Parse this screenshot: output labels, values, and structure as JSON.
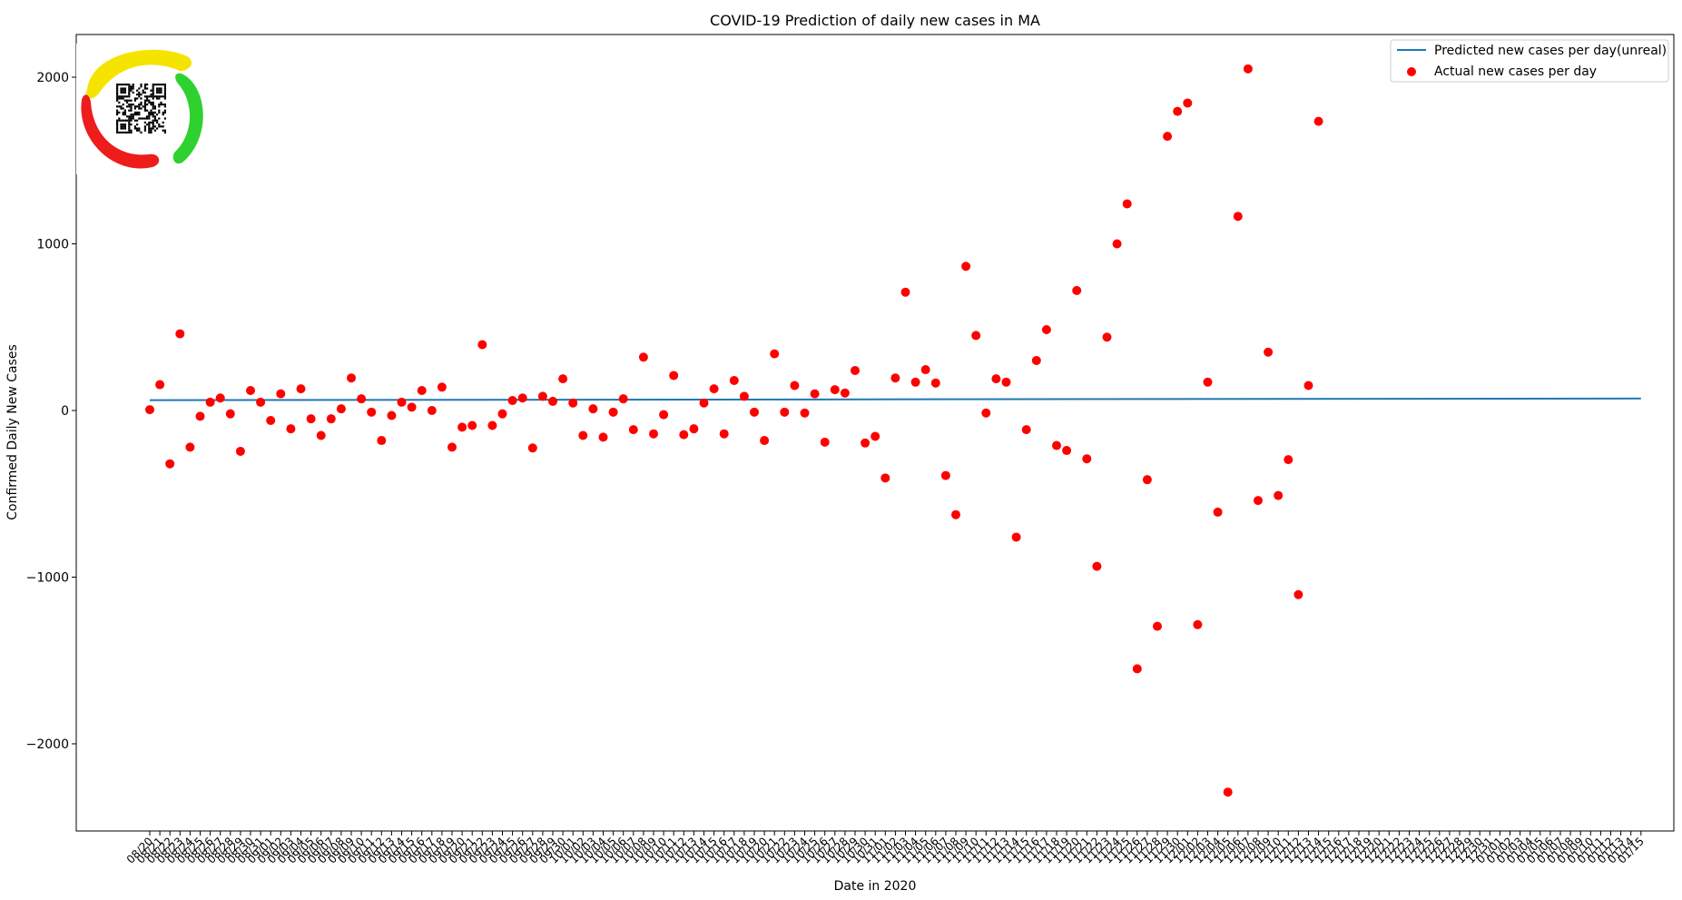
{
  "chart_data": {
    "type": "scatter",
    "title": "COVID-19 Prediction of daily new cases in MA",
    "xlabel": "Date in 2020",
    "ylabel": "Confirmed Daily New Cases",
    "ylim": [
      -2500,
      2250
    ],
    "yticks": [
      -2000,
      -1000,
      0,
      1000,
      2000
    ],
    "grid": false,
    "legend_position": "top-right",
    "categories": [
      "08/20",
      "08/21",
      "08/22",
      "08/23",
      "08/24",
      "08/25",
      "08/26",
      "08/27",
      "08/28",
      "08/29",
      "08/30",
      "08/31",
      "09/01",
      "09/02",
      "09/03",
      "09/04",
      "09/05",
      "09/06",
      "09/07",
      "09/08",
      "09/09",
      "09/10",
      "09/11",
      "09/12",
      "09/13",
      "09/14",
      "09/15",
      "09/16",
      "09/17",
      "09/18",
      "09/19",
      "09/20",
      "09/21",
      "09/22",
      "09/23",
      "09/24",
      "09/25",
      "09/26",
      "09/27",
      "09/28",
      "09/29",
      "09/30",
      "10/01",
      "10/02",
      "10/03",
      "10/04",
      "10/05",
      "10/06",
      "10/07",
      "10/08",
      "10/09",
      "10/10",
      "10/11",
      "10/12",
      "10/13",
      "10/14",
      "10/15",
      "10/16",
      "10/17",
      "10/18",
      "10/19",
      "10/20",
      "10/21",
      "10/22",
      "10/23",
      "10/24",
      "10/25",
      "10/26",
      "10/27",
      "10/28",
      "10/29",
      "10/30",
      "10/31",
      "11/01",
      "11/02",
      "11/03",
      "11/04",
      "11/05",
      "11/06",
      "11/07",
      "11/08",
      "11/09",
      "11/10",
      "11/11",
      "11/12",
      "11/13",
      "11/14",
      "11/15",
      "11/16",
      "11/17",
      "11/18",
      "11/19",
      "11/20",
      "11/21",
      "11/22",
      "11/23",
      "11/24",
      "11/25",
      "11/26",
      "11/27",
      "11/28",
      "11/29",
      "11/30",
      "12/01",
      "12/02",
      "12/03",
      "12/04",
      "12/05",
      "12/06",
      "12/07",
      "12/08",
      "12/09",
      "12/10",
      "12/11",
      "12/12",
      "12/13",
      "12/14",
      "12/15",
      "12/16",
      "12/17",
      "12/18",
      "12/19",
      "12/20",
      "12/21",
      "12/22",
      "12/23",
      "12/24",
      "12/25",
      "12/26",
      "12/27",
      "12/28",
      "12/29",
      "12/30",
      "12/31",
      "01/01",
      "01/02",
      "01/03",
      "01/04",
      "01/05",
      "01/06",
      "01/07",
      "01/08",
      "01/09",
      "01/10",
      "01/11",
      "01/12",
      "01/13",
      "01/14",
      "01/15"
    ],
    "series": [
      {
        "name": "Predicted new cases per day(unreal)",
        "kind": "line",
        "color": "#1f77b4",
        "start_value": 62,
        "end_value": 72
      },
      {
        "name": "Actual new cases per day",
        "kind": "scatter",
        "color": "#ff0000",
        "values": [
          5,
          155,
          -320,
          460,
          -220,
          -35,
          50,
          75,
          -20,
          -245,
          120,
          50,
          -60,
          100,
          -110,
          130,
          -50,
          -150,
          -50,
          10,
          195,
          70,
          -10,
          -180,
          -30,
          50,
          20,
          120,
          0,
          140,
          -220,
          -100,
          -90,
          395,
          -90,
          -20,
          60,
          75,
          -225,
          85,
          55,
          190,
          45,
          -150,
          10,
          -160,
          -10,
          70,
          -115,
          320,
          -140,
          -25,
          210,
          -145,
          -110,
          45,
          130,
          -140,
          180,
          85,
          -10,
          -180,
          340,
          -10,
          150,
          -15,
          100,
          -190,
          125,
          105,
          240,
          -195,
          -155,
          -405,
          195,
          710,
          170,
          245,
          165,
          -390,
          -625,
          865,
          450,
          -15,
          190,
          170,
          -760,
          -115,
          300,
          485,
          -210,
          -240,
          720,
          -290,
          -935,
          440,
          1000,
          1240,
          -1550,
          -415,
          -1295,
          1645,
          1795,
          1845,
          -1285,
          170,
          -610,
          -2290,
          1165,
          2050,
          -540,
          350,
          -510,
          -295,
          -1105,
          150,
          1735
        ]
      }
    ]
  },
  "logo": {
    "colors": [
      "#f5e400",
      "#2fd12f",
      "#ef1c1c"
    ]
  }
}
